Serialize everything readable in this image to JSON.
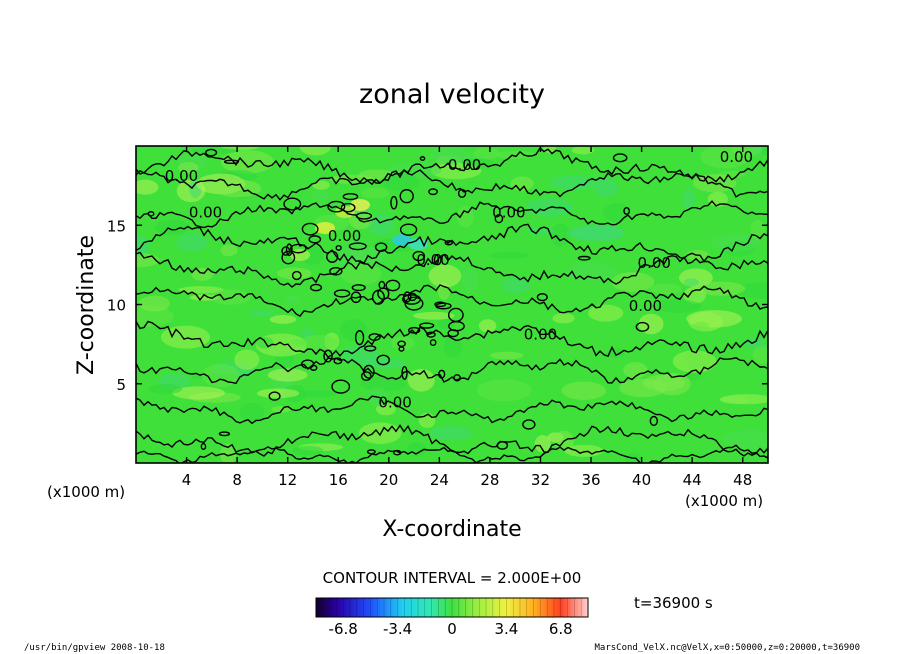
{
  "chart_data": {
    "type": "heatmap",
    "title": "zonal velocity",
    "xlabel": "X-coordinate",
    "ylabel": "Z-coordinate",
    "x_unit_left": "(x1000 m)",
    "x_unit_right": "(x1000 m)",
    "xlim": [
      0,
      50
    ],
    "ylim": [
      0,
      20
    ],
    "x_ticks": [
      4,
      8,
      12,
      16,
      20,
      24,
      28,
      32,
      36,
      40,
      44,
      48
    ],
    "y_ticks": [
      5,
      10,
      15
    ],
    "contour_interval_text": "CONTOUR INTERVAL = 2.000E+00",
    "contour_labels": [
      {
        "x": 3.6,
        "z": 17.8,
        "text": "0.00"
      },
      {
        "x": 5.5,
        "z": 15.5,
        "text": "0.00"
      },
      {
        "x": 26.0,
        "z": 18.5,
        "text": "0.00"
      },
      {
        "x": 29.5,
        "z": 15.5,
        "text": "0.00"
      },
      {
        "x": 47.5,
        "z": 19.0,
        "text": "0.00"
      },
      {
        "x": 16.5,
        "z": 14.0,
        "text": "0.00"
      },
      {
        "x": 23.5,
        "z": 12.5,
        "text": "0.00"
      },
      {
        "x": 41.0,
        "z": 12.3,
        "text": "0.00"
      },
      {
        "x": 40.3,
        "z": 9.6,
        "text": "0.00"
      },
      {
        "x": 32.0,
        "z": 7.8,
        "text": "0.00"
      },
      {
        "x": 20.5,
        "z": 3.5,
        "text": "0.00"
      }
    ],
    "time_label": "t=36900 s",
    "colorbar": {
      "min": -8.5,
      "max": 8.5,
      "ticks": [
        "-6.8",
        "-3.4",
        "0",
        "3.4",
        "6.8"
      ],
      "tick_values": [
        -6.8,
        -3.4,
        0,
        3.4,
        6.8
      ]
    }
  },
  "footer": {
    "left": "/usr/bin/gpview  2008-10-18",
    "right": "MarsCond_VelX.nc@VelX,x=0:50000,z=0:20000,t=36900"
  },
  "colors": {
    "field_base": "#3fe03a",
    "field_light": "#8ef04a",
    "contour": "#000000"
  }
}
